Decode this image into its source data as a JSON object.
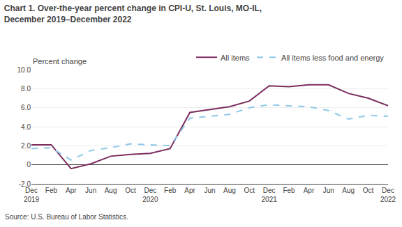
{
  "chart_data": {
    "type": "line",
    "title": "Chart 1. Over-the-year percent change in CPI-U, St. Louis, MO-IL,\nDecember 2019–December 2022",
    "ylabel": "Percent change",
    "annotations": [
      "Source: U.S. Bureau of Labor Statistics."
    ],
    "categories": [
      "Dec\n2019",
      "Feb",
      "Apr",
      "Jun",
      "Aug",
      "Oct",
      "Dec\n2020",
      "Feb",
      "Apr",
      "Jun",
      "Aug",
      "Oct",
      "Dec\n2021",
      "Feb",
      "Apr",
      "Jun",
      "Aug",
      "Oct",
      "Dec\n2022"
    ],
    "series": [
      {
        "name": "All items",
        "color": "#7b2d5e",
        "line_style": "solid",
        "values": [
          2.1,
          2.1,
          -0.4,
          0.1,
          0.9,
          1.1,
          1.2,
          1.7,
          5.5,
          5.8,
          6.1,
          6.7,
          8.3,
          8.2,
          8.4,
          8.4,
          7.5,
          7.0,
          6.2
        ]
      },
      {
        "name": "All items less food and energy",
        "color": "#8ec8e8",
        "line_style": "dash",
        "values": [
          1.7,
          1.8,
          0.5,
          1.5,
          1.8,
          2.2,
          2.1,
          2.0,
          4.9,
          5.1,
          5.3,
          6.0,
          6.3,
          6.2,
          6.1,
          5.7,
          4.8,
          5.2,
          5.1
        ]
      }
    ],
    "ylim": [
      -2.0,
      10.0
    ],
    "yticks": [
      {
        "value": -2.0,
        "label": "-2.0"
      },
      0,
      {
        "value": 2.0,
        "label": "2.0"
      },
      {
        "value": 4.0,
        "label": "4.0"
      },
      {
        "value": 6.0,
        "label": "6.0"
      },
      {
        "value": 8.0,
        "label": "8.0"
      },
      {
        "value": 10.0,
        "label": "10.0"
      }
    ],
    "grid": true,
    "legend": "top"
  }
}
